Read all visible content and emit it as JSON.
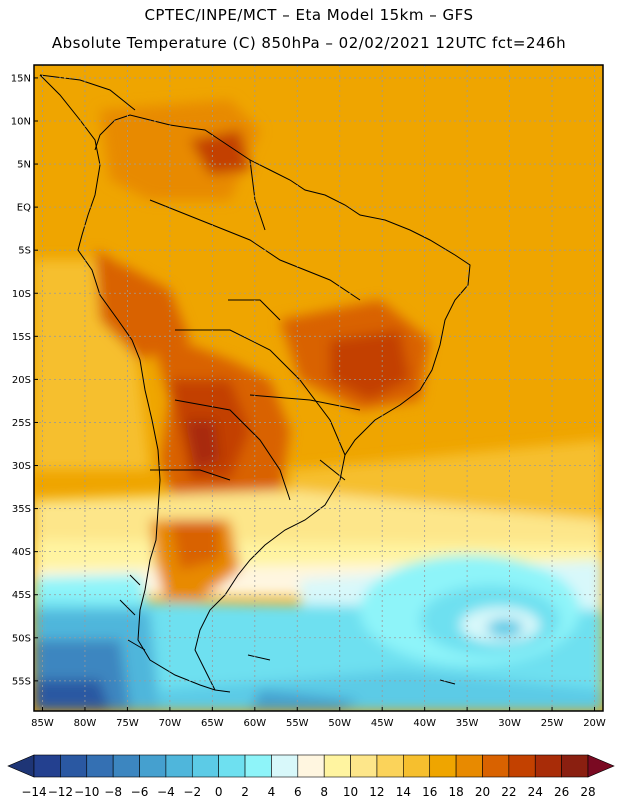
{
  "header": {
    "line1": "CPTEC/INPE/MCT –  Eta Model 15km – GFS",
    "line2": "Absolute Temperature (C) 850hPa – 02/02/2021 12UTC fct=246h"
  },
  "map": {
    "lat_ticks": [
      "15N",
      "10N",
      "5N",
      "EQ",
      "5S",
      "10S",
      "15S",
      "20S",
      "25S",
      "30S",
      "35S",
      "40S",
      "45S",
      "50S",
      "55S"
    ],
    "lon_ticks": [
      "85W",
      "80W",
      "75W",
      "70W",
      "65W",
      "60W",
      "55W",
      "50W",
      "45W",
      "40W",
      "35W",
      "30W",
      "25W",
      "20W"
    ],
    "lon_range": [
      -86,
      -19
    ],
    "lat_range": [
      -58.5,
      16.5
    ],
    "gridlines": true
  },
  "colorbar": {
    "labels": [
      "-14",
      "-12",
      "-10",
      "-8",
      "-6",
      "-4",
      "-2",
      "0",
      "2",
      "4",
      "6",
      "8",
      "10",
      "12",
      "14",
      "16",
      "18",
      "20",
      "22",
      "24",
      "26",
      "28"
    ],
    "colors": [
      "#23408f",
      "#2a58a2",
      "#3470b3",
      "#3c86c0",
      "#45a0cf",
      "#4fb6db",
      "#5ccbe6",
      "#6ee0f0",
      "#8ef4f9",
      "#d8f8fa",
      "#fff6e0",
      "#fff4a0",
      "#fde68a",
      "#fbd35a",
      "#f6bf2e",
      "#efa500",
      "#e88a00",
      "#d96200",
      "#c34100",
      "#a82c08",
      "#8a1f10"
    ],
    "low_cap_color": "#1e3576",
    "high_cap_color": "#7a0a22"
  }
}
